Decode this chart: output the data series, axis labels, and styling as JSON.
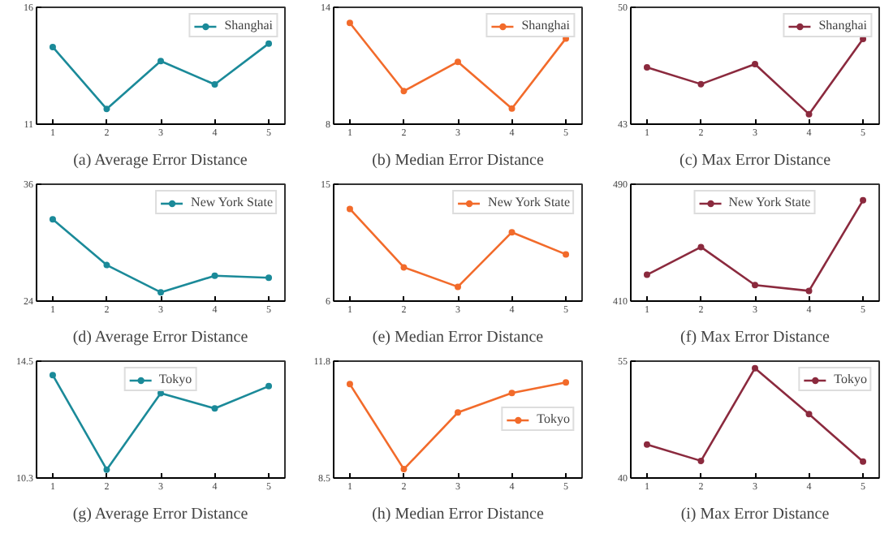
{
  "chart_data": [
    {
      "type": "line",
      "title": "(a) Average Error Distance",
      "x": [
        1,
        2,
        3,
        4,
        5
      ],
      "xlim": [
        0.7,
        5.3
      ],
      "xticks": [
        1,
        2,
        3,
        4,
        5
      ],
      "ylim": [
        11,
        16
      ],
      "yticks": [
        11,
        16
      ],
      "marker": "circle",
      "legend": "top right",
      "grid": false,
      "series": [
        {
          "name": "Shanghai",
          "color": "#1b8a99",
          "values": [
            14.3,
            11.65,
            13.7,
            12.7,
            14.45
          ]
        }
      ]
    },
    {
      "type": "line",
      "title": "(b) Median Error Distance",
      "x": [
        1,
        2,
        3,
        4,
        5
      ],
      "xlim": [
        0.7,
        5.3
      ],
      "xticks": [
        1,
        2,
        3,
        4,
        5
      ],
      "ylim": [
        8,
        14
      ],
      "yticks": [
        8,
        14
      ],
      "marker": "circle",
      "legend": "top right",
      "grid": false,
      "series": [
        {
          "name": "Shanghai",
          "color": "#f26b2b",
          "values": [
            13.2,
            9.7,
            11.2,
            8.8,
            12.4
          ]
        }
      ]
    },
    {
      "type": "line",
      "title": "(c) Max Error Distance",
      "x": [
        1,
        2,
        3,
        4,
        5
      ],
      "xlim": [
        0.7,
        5.3
      ],
      "xticks": [
        1,
        2,
        3,
        4,
        5
      ],
      "ylim": [
        43,
        50
      ],
      "yticks": [
        43,
        50
      ],
      "marker": "circle",
      "legend": "top right",
      "grid": false,
      "series": [
        {
          "name": "Shanghai",
          "color": "#8b2a3e",
          "values": [
            46.4,
            45.4,
            46.6,
            43.6,
            48.1
          ]
        }
      ]
    },
    {
      "type": "line",
      "title": "(d) Average Error Distance",
      "x": [
        1,
        2,
        3,
        4,
        5
      ],
      "xlim": [
        0.7,
        5.3
      ],
      "xticks": [
        1,
        2,
        3,
        4,
        5
      ],
      "ylim": [
        24,
        36
      ],
      "yticks": [
        24,
        36
      ],
      "marker": "circle",
      "legend": "top right",
      "grid": false,
      "series": [
        {
          "name": "New York State",
          "color": "#1b8a99",
          "values": [
            32.4,
            27.7,
            24.9,
            26.6,
            26.4
          ]
        }
      ]
    },
    {
      "type": "line",
      "title": "(e) Median Error Distance",
      "x": [
        1,
        2,
        3,
        4,
        5
      ],
      "xlim": [
        0.7,
        5.3
      ],
      "xticks": [
        1,
        2,
        3,
        4,
        5
      ],
      "ylim": [
        6,
        15
      ],
      "yticks": [
        6,
        15
      ],
      "marker": "circle",
      "legend": "top right",
      "grid": false,
      "series": [
        {
          "name": "New York State",
          "color": "#f26b2b",
          "values": [
            13.1,
            8.6,
            7.1,
            11.3,
            9.6
          ]
        }
      ]
    },
    {
      "type": "line",
      "title": "(f) Max Error Distance",
      "x": [
        1,
        2,
        3,
        4,
        5
      ],
      "xlim": [
        0.7,
        5.3
      ],
      "xticks": [
        1,
        2,
        3,
        4,
        5
      ],
      "ylim": [
        410,
        490
      ],
      "yticks": [
        410,
        490
      ],
      "marker": "circle",
      "legend": "top",
      "grid": false,
      "series": [
        {
          "name": "New York State",
          "color": "#8b2a3e",
          "values": [
            428,
            447,
            421,
            417,
            479
          ]
        }
      ]
    },
    {
      "type": "line",
      "title": "(g) Average Error Distance",
      "x": [
        1,
        2,
        3,
        4,
        5
      ],
      "xlim": [
        0.7,
        5.3
      ],
      "xticks": [
        1,
        2,
        3,
        4,
        5
      ],
      "ylim": [
        10.3,
        14.5
      ],
      "yticks": [
        10.3,
        14.5
      ],
      "marker": "circle",
      "legend": "top",
      "grid": false,
      "series": [
        {
          "name": "Tokyo",
          "color": "#1b8a99",
          "values": [
            14.0,
            10.6,
            13.35,
            12.8,
            13.6
          ]
        }
      ]
    },
    {
      "type": "line",
      "title": "(h) Median Error Distance",
      "x": [
        1,
        2,
        3,
        4,
        5
      ],
      "xlim": [
        0.7,
        5.3
      ],
      "xticks": [
        1,
        2,
        3,
        4,
        5
      ],
      "ylim": [
        8.5,
        11.8
      ],
      "yticks": [
        8.5,
        11.8
      ],
      "marker": "circle",
      "legend": "right",
      "grid": false,
      "series": [
        {
          "name": "Tokyo",
          "color": "#f26b2b",
          "values": [
            11.15,
            8.75,
            10.35,
            10.9,
            11.2
          ]
        }
      ]
    },
    {
      "type": "line",
      "title": "(i) Max Error Distance",
      "x": [
        1,
        2,
        3,
        4,
        5
      ],
      "xlim": [
        0.7,
        5.3
      ],
      "xticks": [
        1,
        2,
        3,
        4,
        5
      ],
      "ylim": [
        40,
        55
      ],
      "yticks": [
        40,
        55
      ],
      "marker": "circle",
      "legend": "top right",
      "grid": false,
      "series": [
        {
          "name": "Tokyo",
          "color": "#8b2a3e",
          "values": [
            44.3,
            42.2,
            54.1,
            48.2,
            42.1
          ]
        }
      ]
    }
  ]
}
